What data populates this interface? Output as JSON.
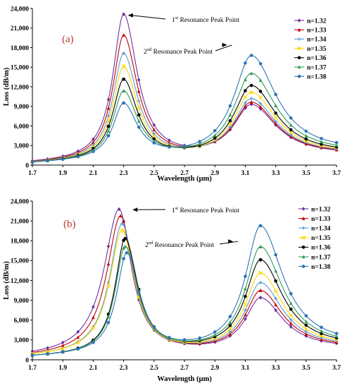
{
  "chart_data": [
    {
      "type": "line",
      "panel_label": "(a)",
      "xlabel": "Wavelength (μm)",
      "ylabel": "Loss (dB/m)",
      "xlim": [
        1.7,
        3.7
      ],
      "ylim": [
        0,
        24000
      ],
      "x_ticks": [
        "1.7",
        "1.9",
        "2.1",
        "2.3",
        "2.5",
        "2.7",
        "2.9",
        "3.1",
        "3.3",
        "3.5",
        "3.7"
      ],
      "y_ticks": [
        "0",
        "3,000",
        "6,000",
        "9,000",
        "12,000",
        "15,000",
        "18,000",
        "21,000",
        "24,000"
      ],
      "legend_position": "top-right",
      "annotations": [
        {
          "sup_prefix": "1",
          "sup": "st",
          "text": " Resonance Peak Point",
          "arrow_to": [
            2.31,
            22950
          ]
        },
        {
          "sup_prefix": "2",
          "sup": "nd",
          "text": "  Resonance Peak Point",
          "arrow_to": [
            2.98,
            18400
          ]
        }
      ],
      "series": [
        {
          "name": "n=1.32",
          "color": "#7030a0",
          "marker": "diamond",
          "peak1": {
            "x": 2.3,
            "y": 23000,
            "w": 0.085,
            "wr": 0.11
          },
          "peak2": {
            "x": 3.14,
            "y": 9000,
            "w": 0.14,
            "wr": 0.2
          },
          "base_left": 150,
          "base_right": 1300
        },
        {
          "name": "n=1.33",
          "color": "#c00000",
          "marker": "triangle",
          "peak1": {
            "x": 2.3,
            "y": 19800,
            "w": 0.085,
            "wr": 0.11
          },
          "peak2": {
            "x": 3.14,
            "y": 9400,
            "w": 0.14,
            "wr": 0.2
          },
          "base_left": 150,
          "base_right": 1350
        },
        {
          "name": "n=1.34",
          "color": "#5b9bd5",
          "marker": "cross",
          "peak1": {
            "x": 2.3,
            "y": 17000,
            "w": 0.085,
            "wr": 0.11
          },
          "peak2": {
            "x": 3.14,
            "y": 10000,
            "w": 0.14,
            "wr": 0.2
          },
          "base_left": 150,
          "base_right": 1400
        },
        {
          "name": "n=1.35",
          "color": "#ffd700",
          "marker": "x",
          "peak1": {
            "x": 2.3,
            "y": 15000,
            "w": 0.085,
            "wr": 0.11
          },
          "peak2": {
            "x": 3.14,
            "y": 11000,
            "w": 0.14,
            "wr": 0.2
          },
          "base_left": 150,
          "base_right": 1450
        },
        {
          "name": "n=1.36",
          "color": "#000000",
          "marker": "circle",
          "peak1": {
            "x": 2.3,
            "y": 13000,
            "w": 0.085,
            "wr": 0.11
          },
          "peak2": {
            "x": 3.14,
            "y": 12100,
            "w": 0.14,
            "wr": 0.2
          },
          "base_left": 150,
          "base_right": 1500
        },
        {
          "name": "n=1.37",
          "color": "#2e9b53",
          "marker": "triangle",
          "peak1": {
            "x": 2.3,
            "y": 11200,
            "w": 0.085,
            "wr": 0.11
          },
          "peak2": {
            "x": 3.14,
            "y": 14000,
            "w": 0.14,
            "wr": 0.2
          },
          "base_left": 150,
          "base_right": 1600
        },
        {
          "name": "n=1.38",
          "color": "#2e75b6",
          "marker": "circle",
          "peak1": {
            "x": 2.3,
            "y": 9300,
            "w": 0.085,
            "wr": 0.11
          },
          "peak2": {
            "x": 3.14,
            "y": 16800,
            "w": 0.14,
            "wr": 0.2
          },
          "base_left": 150,
          "base_right": 1700
        }
      ]
    },
    {
      "type": "line",
      "panel_label": "(b)",
      "xlabel": "Wavelength (μm)",
      "ylabel": "Loss (dB/m)",
      "xlim": [
        1.7,
        3.7
      ],
      "ylim": [
        0,
        24000
      ],
      "x_ticks": [
        "1.7",
        "1.9",
        "2.1",
        "2.3",
        "2.5",
        "2.7",
        "2.9",
        "3.1",
        "3.3",
        "3.5",
        "3.7"
      ],
      "y_ticks": [
        "0",
        "3,000",
        "6,000",
        "9,000",
        "12,000",
        "15,000",
        "18,000",
        "21,000",
        "24,000"
      ],
      "legend_position": "top-right",
      "annotations": [
        {
          "sup_prefix": "1",
          "sup": "st",
          "text": " Resonance Peak Point",
          "arrow_to": [
            2.34,
            22700
          ]
        },
        {
          "sup_prefix": "2",
          "sup": "nd",
          "text": "  Resonance Peak Point",
          "arrow_to": [
            3.02,
            17900
          ]
        }
      ],
      "series": [
        {
          "name": "n=1.32",
          "color": "#7030a0",
          "marker": "diamond",
          "peak1": {
            "x": 2.27,
            "y": 22700,
            "w": 0.12,
            "wr": 0.1
          },
          "peak2": {
            "x": 3.2,
            "y": 9200,
            "w": 0.12,
            "wr": 0.18
          },
          "base_left": 300,
          "base_right": 1500
        },
        {
          "name": "n=1.33",
          "color": "#c00000",
          "marker": "triangle",
          "peak1": {
            "x": 2.28,
            "y": 21700,
            "w": 0.11,
            "wr": 0.1
          },
          "peak2": {
            "x": 3.2,
            "y": 10300,
            "w": 0.12,
            "wr": 0.18
          },
          "base_left": 300,
          "base_right": 1550
        },
        {
          "name": "n=1.34",
          "color": "#5b9bd5",
          "marker": "cross",
          "peak1": {
            "x": 2.29,
            "y": 20500,
            "w": 0.1,
            "wr": 0.1
          },
          "peak2": {
            "x": 3.2,
            "y": 11500,
            "w": 0.12,
            "wr": 0.18
          },
          "base_left": 300,
          "base_right": 1600
        },
        {
          "name": "n=1.35",
          "color": "#ffd700",
          "marker": "x",
          "peak1": {
            "x": 2.29,
            "y": 19500,
            "w": 0.1,
            "wr": 0.1
          },
          "peak2": {
            "x": 3.2,
            "y": 13000,
            "w": 0.12,
            "wr": 0.18
          },
          "base_left": 300,
          "base_right": 1650
        },
        {
          "name": "n=1.36",
          "color": "#000000",
          "marker": "circle",
          "peak1": {
            "x": 2.31,
            "y": 18200,
            "w": 0.08,
            "wr": 0.1
          },
          "peak2": {
            "x": 3.2,
            "y": 15000,
            "w": 0.12,
            "wr": 0.18
          },
          "base_left": 300,
          "base_right": 1700
        },
        {
          "name": "n=1.37",
          "color": "#2e9b53",
          "marker": "triangle",
          "peak1": {
            "x": 2.31,
            "y": 17000,
            "w": 0.08,
            "wr": 0.1
          },
          "peak2": {
            "x": 3.2,
            "y": 17000,
            "w": 0.12,
            "wr": 0.18
          },
          "base_left": 300,
          "base_right": 1750
        },
        {
          "name": "n=1.38",
          "color": "#2e75b6",
          "marker": "circle",
          "peak1": {
            "x": 2.32,
            "y": 16000,
            "w": 0.08,
            "wr": 0.1
          },
          "peak2": {
            "x": 3.2,
            "y": 20200,
            "w": 0.12,
            "wr": 0.18
          },
          "base_left": 300,
          "base_right": 1800
        }
      ]
    }
  ]
}
